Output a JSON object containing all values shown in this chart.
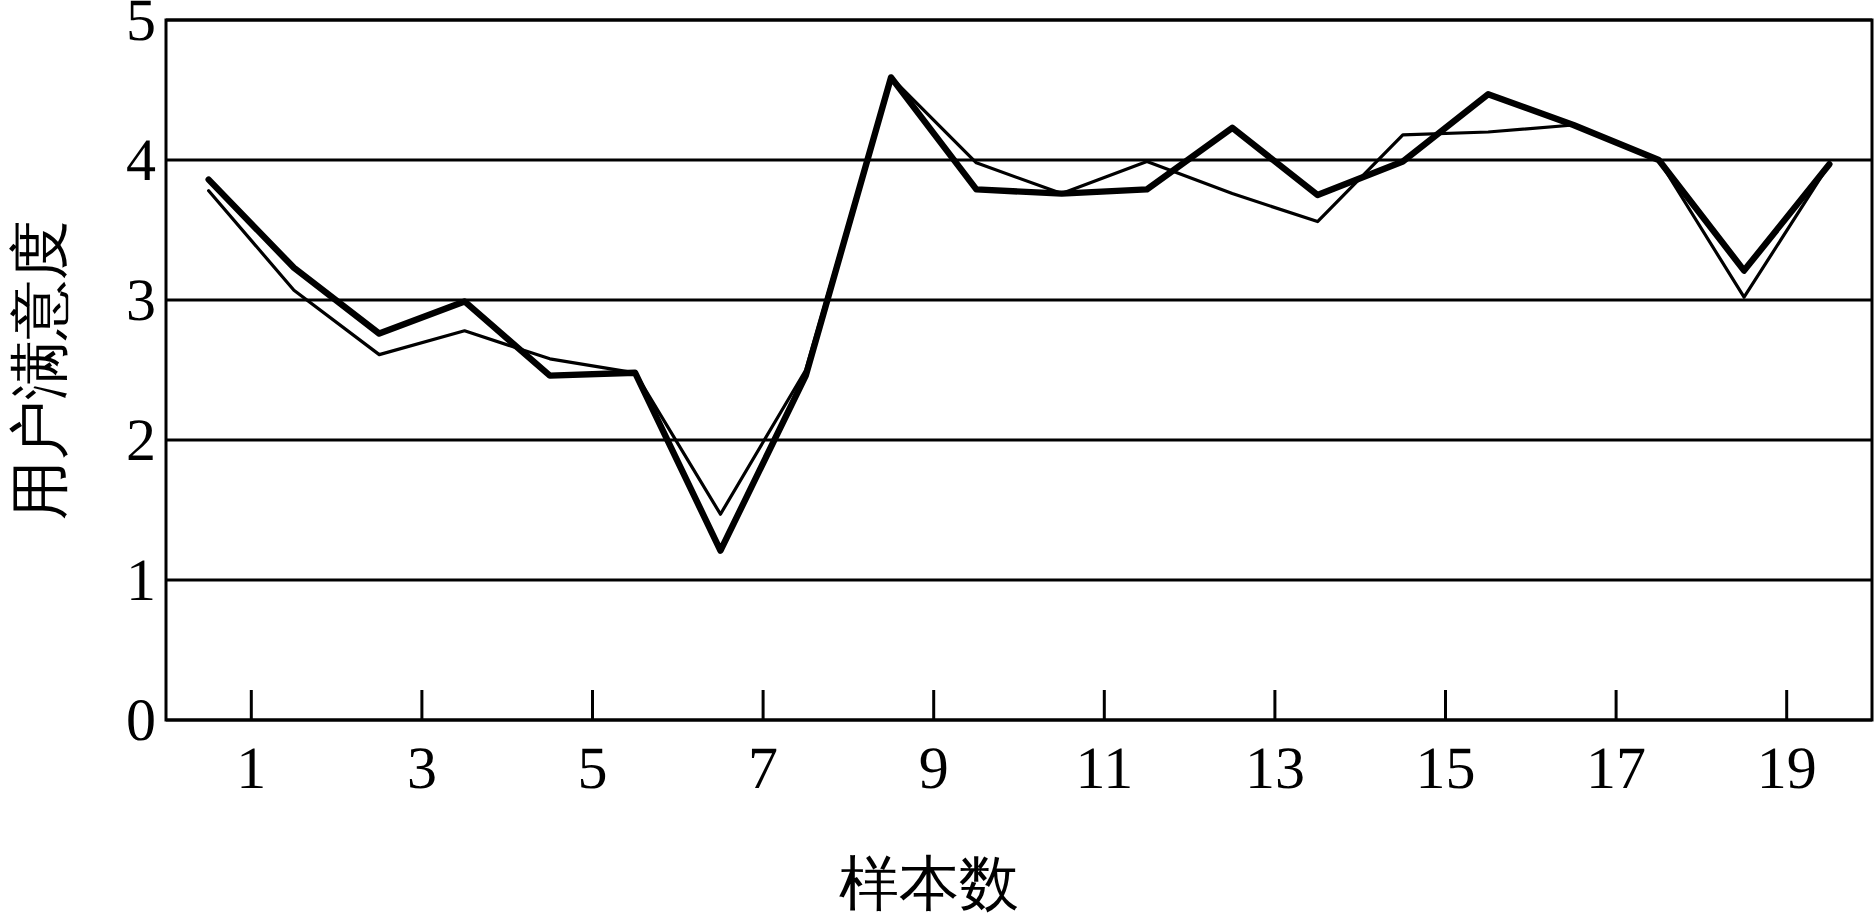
{
  "chart_data": {
    "type": "line",
    "xlabel": "样本数",
    "ylabel": "用户满意度",
    "x": [
      0.5,
      1.5,
      2.5,
      3.5,
      4.5,
      5.5,
      6.5,
      7.5,
      8.5,
      9.5,
      10.5,
      11.5,
      12.5,
      13.5,
      14.5,
      15.5,
      16.5,
      17.5,
      18.5,
      19.5
    ],
    "series": [
      {
        "color": "#000000",
        "values": [
          3.86,
          3.23,
          2.76,
          2.99,
          2.46,
          2.48,
          1.21,
          2.46,
          4.59,
          3.79,
          3.76,
          3.79,
          4.23,
          3.75,
          3.99,
          4.47,
          4.25,
          4.0,
          3.21,
          3.97
        ]
      },
      {
        "color": "#000000",
        "values": [
          3.78,
          3.07,
          2.61,
          2.78,
          2.58,
          2.48,
          1.47,
          2.5,
          4.59,
          3.98,
          3.76,
          3.99,
          3.76,
          3.56,
          4.18,
          4.2,
          4.25,
          4.0,
          3.02,
          3.97
        ]
      }
    ],
    "xlim": [
      0,
      20
    ],
    "ylim": [
      0,
      5
    ],
    "xticks": [
      1,
      3,
      5,
      7,
      9,
      11,
      13,
      15,
      17,
      19
    ],
    "yticks": [
      0,
      1,
      2,
      3,
      4,
      5
    ],
    "grid": "y"
  }
}
